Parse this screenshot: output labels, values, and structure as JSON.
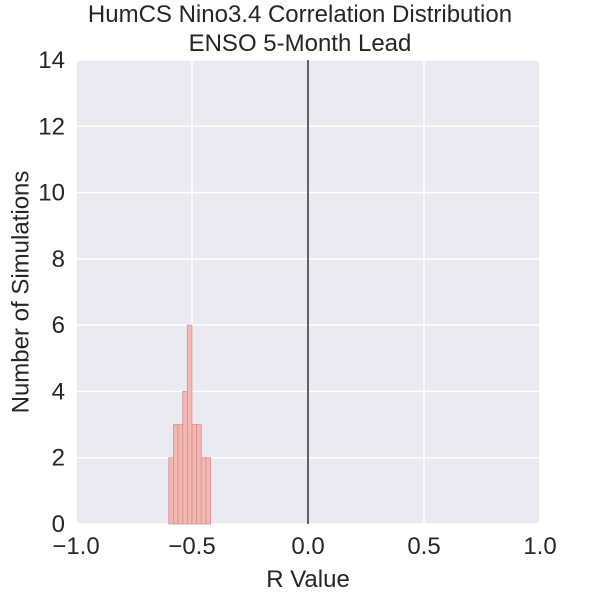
{
  "chart_data": {
    "type": "bar",
    "title_lines": [
      "HumCS Nino3.4 Correlation Distribution",
      "ENSO 5-Month Lead"
    ],
    "xlabel": "R Value",
    "ylabel": "Number of Simulations",
    "xlim": [
      -1.0,
      1.0
    ],
    "ylim": [
      0,
      14
    ],
    "xticks": [
      -1.0,
      -0.5,
      0.0,
      0.5,
      1.0
    ],
    "xtick_labels": [
      "−1.0",
      "−0.5",
      "0.0",
      "0.5",
      "1.0"
    ],
    "yticks": [
      0,
      2,
      4,
      6,
      8,
      10,
      12,
      14
    ],
    "ytick_labels": [
      "0",
      "2",
      "4",
      "6",
      "8",
      "10",
      "12",
      "14"
    ],
    "bins": [
      {
        "x0": -0.6,
        "x1": -0.58,
        "count": 2
      },
      {
        "x0": -0.58,
        "x1": -0.56,
        "count": 3
      },
      {
        "x0": -0.56,
        "x1": -0.54,
        "count": 3
      },
      {
        "x0": -0.54,
        "x1": -0.52,
        "count": 4
      },
      {
        "x0": -0.52,
        "x1": -0.5,
        "count": 6
      },
      {
        "x0": -0.5,
        "x1": -0.48,
        "count": 3
      },
      {
        "x0": -0.48,
        "x1": -0.46,
        "count": 3
      },
      {
        "x0": -0.46,
        "x1": -0.44,
        "count": 2
      },
      {
        "x0": -0.44,
        "x1": -0.42,
        "count": 2
      }
    ],
    "reference_line_x": 0.0,
    "grid": true,
    "colors": {
      "plot_background": "#eaeaf2",
      "grid": "#ffffff",
      "bar_fill": "#f2b8b4",
      "bar_edge": "#d98f8a",
      "reference_line": "#000000",
      "text": "#262626"
    }
  }
}
